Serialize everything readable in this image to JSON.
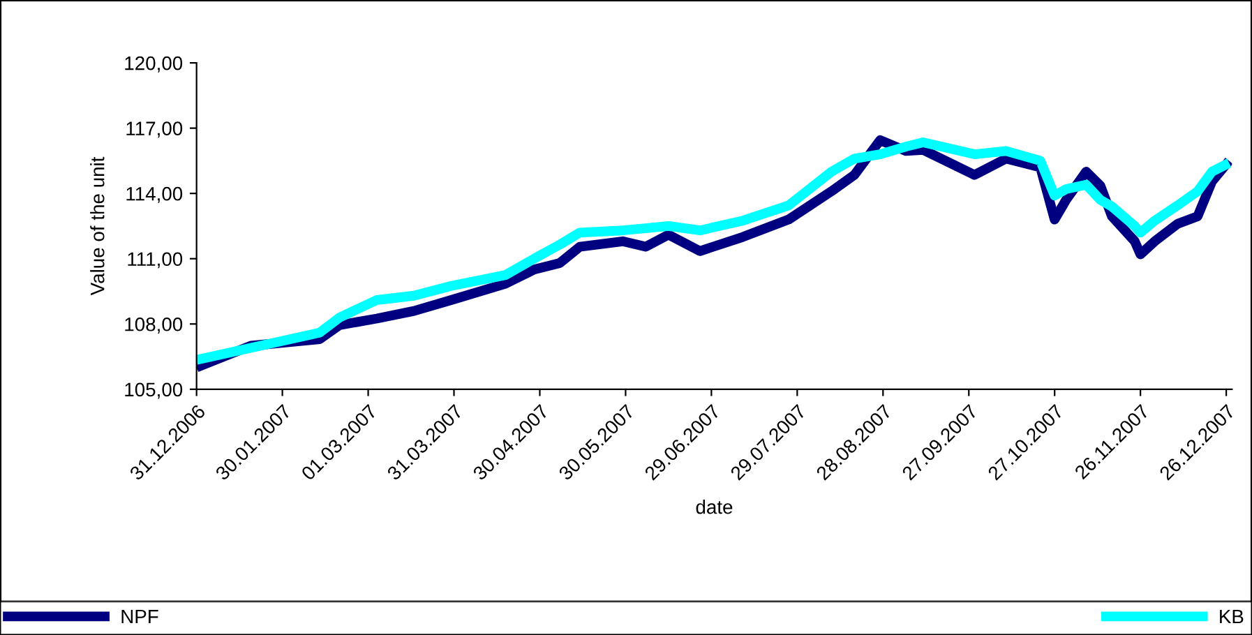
{
  "chart_data": {
    "type": "line",
    "xlabel": "date",
    "ylabel": "Value of the unit",
    "x": [
      "2006-12-31",
      "2007-01-19",
      "2007-02-12",
      "2007-02-19",
      "2007-03-04",
      "2007-03-17",
      "2007-03-30",
      "2007-04-18",
      "2007-04-28",
      "2007-05-07",
      "2007-05-14",
      "2007-05-29",
      "2007-06-06",
      "2007-06-14",
      "2007-06-25",
      "2007-07-10",
      "2007-07-26",
      "2007-08-10",
      "2007-08-18",
      "2007-08-27",
      "2007-09-05",
      "2007-09-11",
      "2007-09-29",
      "2007-10-10",
      "2007-10-22",
      "2007-10-27",
      "2007-10-31",
      "2007-11-07",
      "2007-11-12",
      "2007-11-16",
      "2007-11-24",
      "2007-11-26",
      "2007-12-01",
      "2007-12-09",
      "2007-12-16",
      "2007-12-21",
      "2007-12-27"
    ],
    "series": [
      {
        "name": "NPF",
        "color": "#000080",
        "values": [
          106.0,
          107.0,
          107.3,
          107.95,
          108.25,
          108.6,
          109.1,
          109.85,
          110.5,
          110.8,
          111.55,
          111.8,
          111.55,
          112.1,
          111.35,
          112.0,
          112.8,
          114.1,
          114.85,
          116.45,
          115.95,
          116.0,
          114.85,
          115.6,
          115.2,
          112.8,
          113.7,
          115.0,
          114.35,
          112.95,
          111.8,
          111.2,
          111.8,
          112.6,
          112.95,
          114.55,
          115.5
        ]
      },
      {
        "name": "KB",
        "color": "#00ffff",
        "values": [
          106.35,
          106.9,
          107.6,
          108.3,
          109.1,
          109.3,
          109.75,
          110.25,
          111.0,
          111.65,
          112.2,
          112.3,
          112.4,
          112.5,
          112.3,
          112.75,
          113.45,
          115.0,
          115.6,
          115.8,
          116.15,
          116.35,
          115.8,
          115.95,
          115.5,
          113.9,
          114.2,
          114.4,
          113.7,
          113.4,
          112.5,
          112.2,
          112.75,
          113.45,
          114.1,
          115.0,
          115.4
        ]
      }
    ],
    "xlim": [
      "2006-12-31",
      "2007-12-28"
    ],
    "xticks": [
      {
        "value": "2006-12-31",
        "label": "31.12.2006"
      },
      {
        "value": "2007-01-30",
        "label": "30.01.2007"
      },
      {
        "value": "2007-03-01",
        "label": "01.03.2007"
      },
      {
        "value": "2007-03-31",
        "label": "31.03.2007"
      },
      {
        "value": "2007-04-30",
        "label": "30.04.2007"
      },
      {
        "value": "2007-05-30",
        "label": "30.05.2007"
      },
      {
        "value": "2007-06-29",
        "label": "29.06.2007"
      },
      {
        "value": "2007-07-29",
        "label": "29.07.2007"
      },
      {
        "value": "2007-08-28",
        "label": "28.08.2007"
      },
      {
        "value": "2007-09-27",
        "label": "27.09.2007"
      },
      {
        "value": "2007-10-27",
        "label": "27.10.2007"
      },
      {
        "value": "2007-11-26",
        "label": "26.11.2007"
      },
      {
        "value": "2007-12-26",
        "label": "26.12.2007"
      }
    ],
    "ylim": [
      105,
      120
    ],
    "yticks": [
      {
        "value": 105,
        "label": "105,00"
      },
      {
        "value": 108,
        "label": "108,00"
      },
      {
        "value": 111,
        "label": "111,00"
      },
      {
        "value": 114,
        "label": "114,00"
      },
      {
        "value": 117,
        "label": "117,00"
      },
      {
        "value": 120,
        "label": "120,00"
      }
    ],
    "legend": "bottom",
    "line_style": "solid",
    "marker": "none"
  }
}
